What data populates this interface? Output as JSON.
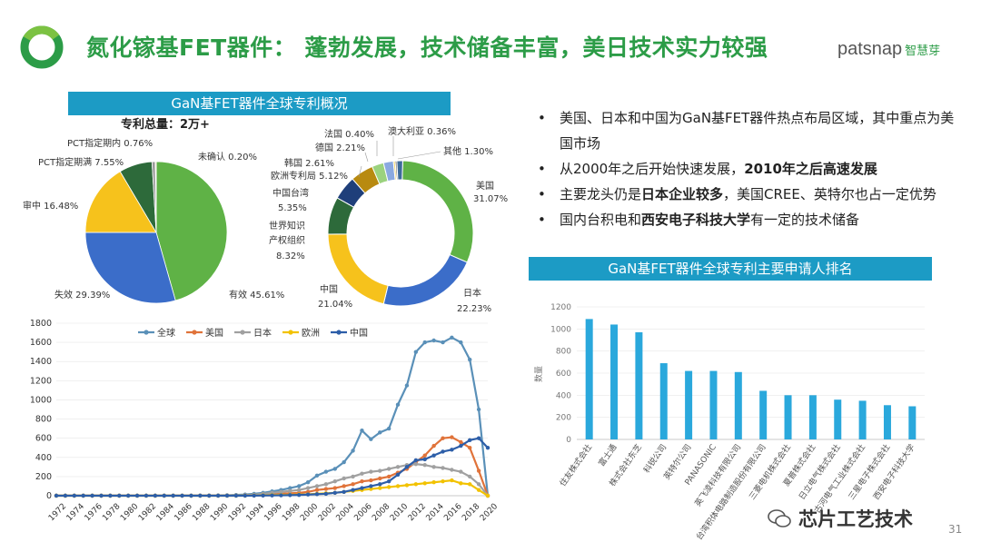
{
  "header": {
    "title": "氮化镓基FET器件： 蓬勃发展，技术储备丰富，美日技术实力较强",
    "brand_latin": "patsnap",
    "brand_cn": "智慧芽"
  },
  "overview": {
    "banner": "GaN基FET器件全球专利概况",
    "total_label": "专利总量：2万+"
  },
  "bullets": [
    {
      "parts": [
        {
          "t": "美国、日本和中国为GaN基FET器件热点布局区域，其中重点为美国市场",
          "b": false
        }
      ]
    },
    {
      "parts": [
        {
          "t": "从2000年之后开始快速发展，",
          "b": false
        },
        {
          "t": "2010年之后高速发展",
          "b": true
        }
      ]
    },
    {
      "parts": [
        {
          "t": "主要龙头仍是",
          "b": false
        },
        {
          "t": "日本企业较多",
          "b": true
        },
        {
          "t": "，美国CREE、英特尔也占一定优势",
          "b": false
        }
      ]
    },
    {
      "parts": [
        {
          "t": "国内台积电和",
          "b": false
        },
        {
          "t": "西安电子科技大学",
          "b": true
        },
        {
          "t": "有一定的技术储备",
          "b": false
        }
      ]
    }
  ],
  "ranking": {
    "banner": "GaN基FET器件全球专利主要申请人排名"
  },
  "footer": {
    "signature": "芯片工艺技术",
    "page": "31"
  },
  "chart_data": [
    {
      "type": "pie",
      "title": "",
      "slices": [
        {
          "label": "有效 45.61%",
          "value": 45.61,
          "color": "#5fb246"
        },
        {
          "label": "失效 29.39%",
          "value": 29.39,
          "color": "#3b6dc9"
        },
        {
          "label": "审中 16.48%",
          "value": 16.48,
          "color": "#f6c21c"
        },
        {
          "label": "PCT指定期满 7.55%",
          "value": 7.55,
          "color": "#2d6a3a"
        },
        {
          "label": "PCT指定期内 0.76%",
          "value": 0.76,
          "color": "#9a9a9a"
        },
        {
          "label": "未确认 0.20%",
          "value": 0.2,
          "color": "#f2d45c"
        }
      ]
    },
    {
      "type": "pie",
      "title": "",
      "donut": true,
      "slices": [
        {
          "label": "美国 31.07%",
          "value": 31.07,
          "color": "#5fb246"
        },
        {
          "label": "日本 22.23%",
          "value": 22.23,
          "color": "#3b6dc9"
        },
        {
          "label": "中国 21.04%",
          "value": 21.04,
          "color": "#f6c21c"
        },
        {
          "label": "世界知识产权组织 8.32%",
          "value": 8.32,
          "color": "#2d6a3a"
        },
        {
          "label": "中国台湾 5.35%",
          "value": 5.35,
          "color": "#1f3f7a"
        },
        {
          "label": "欧洲专利局 5.12%",
          "value": 5.12,
          "color": "#b88a10"
        },
        {
          "label": "韩国 2.61%",
          "value": 2.61,
          "color": "#9bd27e"
        },
        {
          "label": "德国 2.21%",
          "value": 2.21,
          "color": "#8aa9e0"
        },
        {
          "label": "法国 0.40%",
          "value": 0.4,
          "color": "#f2d45c"
        },
        {
          "label": "澳大利亚 0.36%",
          "value": 0.36,
          "color": "#5a5a5a"
        },
        {
          "label": "其他 1.30%",
          "value": 1.3,
          "color": "#3d6b9a"
        }
      ]
    },
    {
      "type": "line",
      "title": "",
      "xlabel": "",
      "ylabel": "",
      "x": [
        1972,
        1973,
        1974,
        1975,
        1976,
        1977,
        1978,
        1979,
        1980,
        1981,
        1982,
        1983,
        1984,
        1985,
        1986,
        1987,
        1988,
        1989,
        1990,
        1991,
        1992,
        1993,
        1994,
        1995,
        1996,
        1997,
        1998,
        1999,
        2000,
        2001,
        2002,
        2003,
        2004,
        2005,
        2006,
        2007,
        2008,
        2009,
        2010,
        2011,
        2012,
        2013,
        2014,
        2015,
        2016,
        2017,
        2018,
        2019,
        2020
      ],
      "x_tick_labels": [
        "1972",
        "1974",
        "1976",
        "1978",
        "1980",
        "1982",
        "1984",
        "1986",
        "1988",
        "1990",
        "1992",
        "1994",
        "1996",
        "1998",
        "2000",
        "2002",
        "2004",
        "2006",
        "2008",
        "2010",
        "2012",
        "2014",
        "2016",
        "2018",
        "2020"
      ],
      "ylim": [
        0,
        1800
      ],
      "yticks": [
        0,
        200,
        400,
        600,
        800,
        1000,
        1200,
        1400,
        1600,
        1800
      ],
      "legend_position": "top",
      "series": [
        {
          "name": "全球",
          "color": "#5a90b8",
          "values": [
            2,
            2,
            2,
            2,
            2,
            2,
            2,
            2,
            2,
            2,
            2,
            2,
            2,
            2,
            2,
            2,
            3,
            3,
            4,
            5,
            8,
            12,
            20,
            30,
            45,
            60,
            80,
            100,
            140,
            210,
            250,
            280,
            350,
            470,
            680,
            590,
            660,
            700,
            950,
            1150,
            1500,
            1600,
            1620,
            1600,
            1650,
            1600,
            1420,
            900,
            0
          ]
        },
        {
          "name": "美国",
          "color": "#e0733a",
          "values": [
            1,
            1,
            1,
            1,
            1,
            1,
            1,
            1,
            1,
            1,
            1,
            1,
            1,
            1,
            1,
            1,
            1,
            1,
            1,
            2,
            3,
            5,
            8,
            12,
            15,
            20,
            25,
            30,
            40,
            60,
            70,
            80,
            100,
            120,
            150,
            160,
            180,
            200,
            240,
            280,
            350,
            420,
            520,
            600,
            610,
            560,
            500,
            260,
            0
          ]
        },
        {
          "name": "日本",
          "color": "#a0a0a0",
          "values": [
            1,
            1,
            1,
            1,
            1,
            1,
            1,
            1,
            1,
            1,
            1,
            1,
            1,
            1,
            1,
            1,
            1,
            1,
            2,
            2,
            3,
            5,
            10,
            20,
            30,
            40,
            50,
            60,
            80,
            100,
            120,
            150,
            180,
            200,
            230,
            250,
            260,
            280,
            300,
            320,
            330,
            320,
            300,
            290,
            270,
            250,
            200,
            120,
            0
          ]
        },
        {
          "name": "欧洲",
          "color": "#f2c200",
          "values": [
            0,
            0,
            0,
            0,
            0,
            0,
            0,
            0,
            0,
            0,
            0,
            0,
            0,
            0,
            0,
            0,
            0,
            0,
            0,
            0,
            0,
            1,
            2,
            4,
            6,
            8,
            10,
            12,
            15,
            20,
            25,
            30,
            40,
            50,
            60,
            70,
            80,
            90,
            100,
            110,
            120,
            130,
            140,
            150,
            160,
            130,
            120,
            60,
            0
          ]
        },
        {
          "name": "中国",
          "color": "#2d5ea8",
          "values": [
            0,
            0,
            0,
            0,
            0,
            0,
            0,
            0,
            0,
            0,
            0,
            0,
            0,
            0,
            0,
            0,
            0,
            0,
            0,
            0,
            0,
            0,
            1,
            2,
            3,
            4,
            6,
            8,
            12,
            16,
            20,
            30,
            40,
            60,
            80,
            100,
            120,
            150,
            220,
            300,
            370,
            380,
            420,
            460,
            480,
            520,
            580,
            600,
            500
          ]
        }
      ]
    },
    {
      "type": "bar",
      "title": "",
      "xlabel": "",
      "ylabel": "数量",
      "ylim": [
        0,
        1200
      ],
      "yticks": [
        0,
        200,
        400,
        600,
        800,
        1000,
        1200
      ],
      "categories": [
        "住友株式会社",
        "富士通",
        "株式会社东芝",
        "科锐公司",
        "英特尔公司",
        "PANASONIC",
        "英飞凌科技有限公司",
        "台湾积体电路制造股份有限公司",
        "三菱电机株式会社",
        "夏普株式会社",
        "日立电气株式会社",
        "古河电气工业株式会社",
        "三星电子株式会社",
        "西安电子科技大学"
      ],
      "values": [
        1090,
        1040,
        970,
        690,
        620,
        620,
        610,
        440,
        400,
        400,
        360,
        350,
        310,
        300
      ],
      "color": "#2aa8dc"
    }
  ]
}
